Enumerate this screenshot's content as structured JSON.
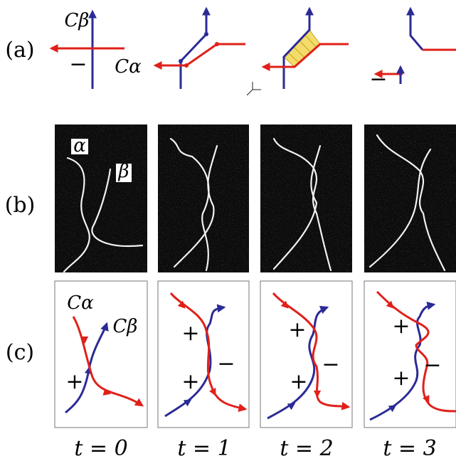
{
  "row_labels": [
    "(a)",
    "(b)",
    "(c)"
  ],
  "panel_a": {
    "axis_labels": [
      "Cβ",
      "Cα"
    ],
    "signs": [
      "−",
      "−"
    ]
  },
  "panel_b": {
    "labels": [
      "α",
      "β"
    ]
  },
  "panel_c": [
    {
      "curve_labels": [
        "Cα",
        "Cβ"
      ],
      "signs": [
        "+"
      ]
    },
    {
      "signs": [
        "+",
        "+",
        "−"
      ]
    },
    {
      "signs": [
        "+",
        "+",
        "−"
      ]
    },
    {
      "signs": [
        "+",
        "+",
        "−"
      ]
    }
  ],
  "time_labels": [
    "t = 0",
    "t = 1",
    "t = 2",
    "t = 3"
  ]
}
